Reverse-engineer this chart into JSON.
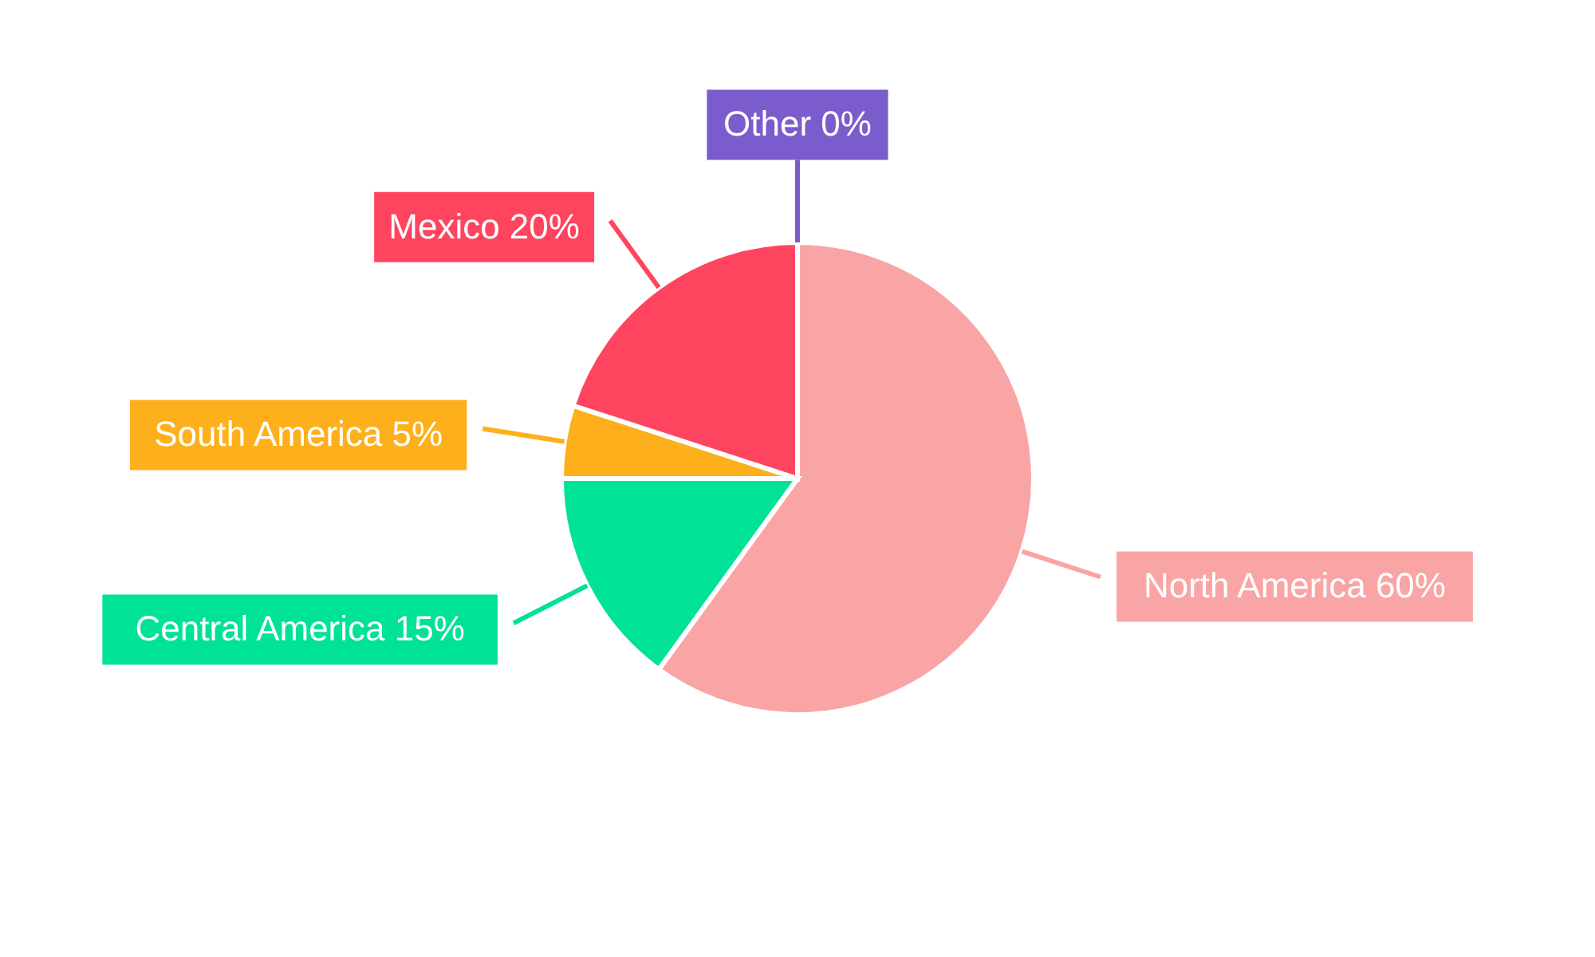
{
  "chart_data": {
    "type": "pie",
    "categories": [
      "North America",
      "Central America",
      "South America",
      "Mexico",
      "Other"
    ],
    "values": [
      60,
      15,
      5,
      20,
      0
    ],
    "value_labels": [
      "60%",
      "15%",
      "5%",
      "20%",
      "0%"
    ],
    "colors": [
      "#f9a5a5",
      "#00e296",
      "#fdb01b",
      "#ff445f",
      "#7b5ccc"
    ]
  }
}
